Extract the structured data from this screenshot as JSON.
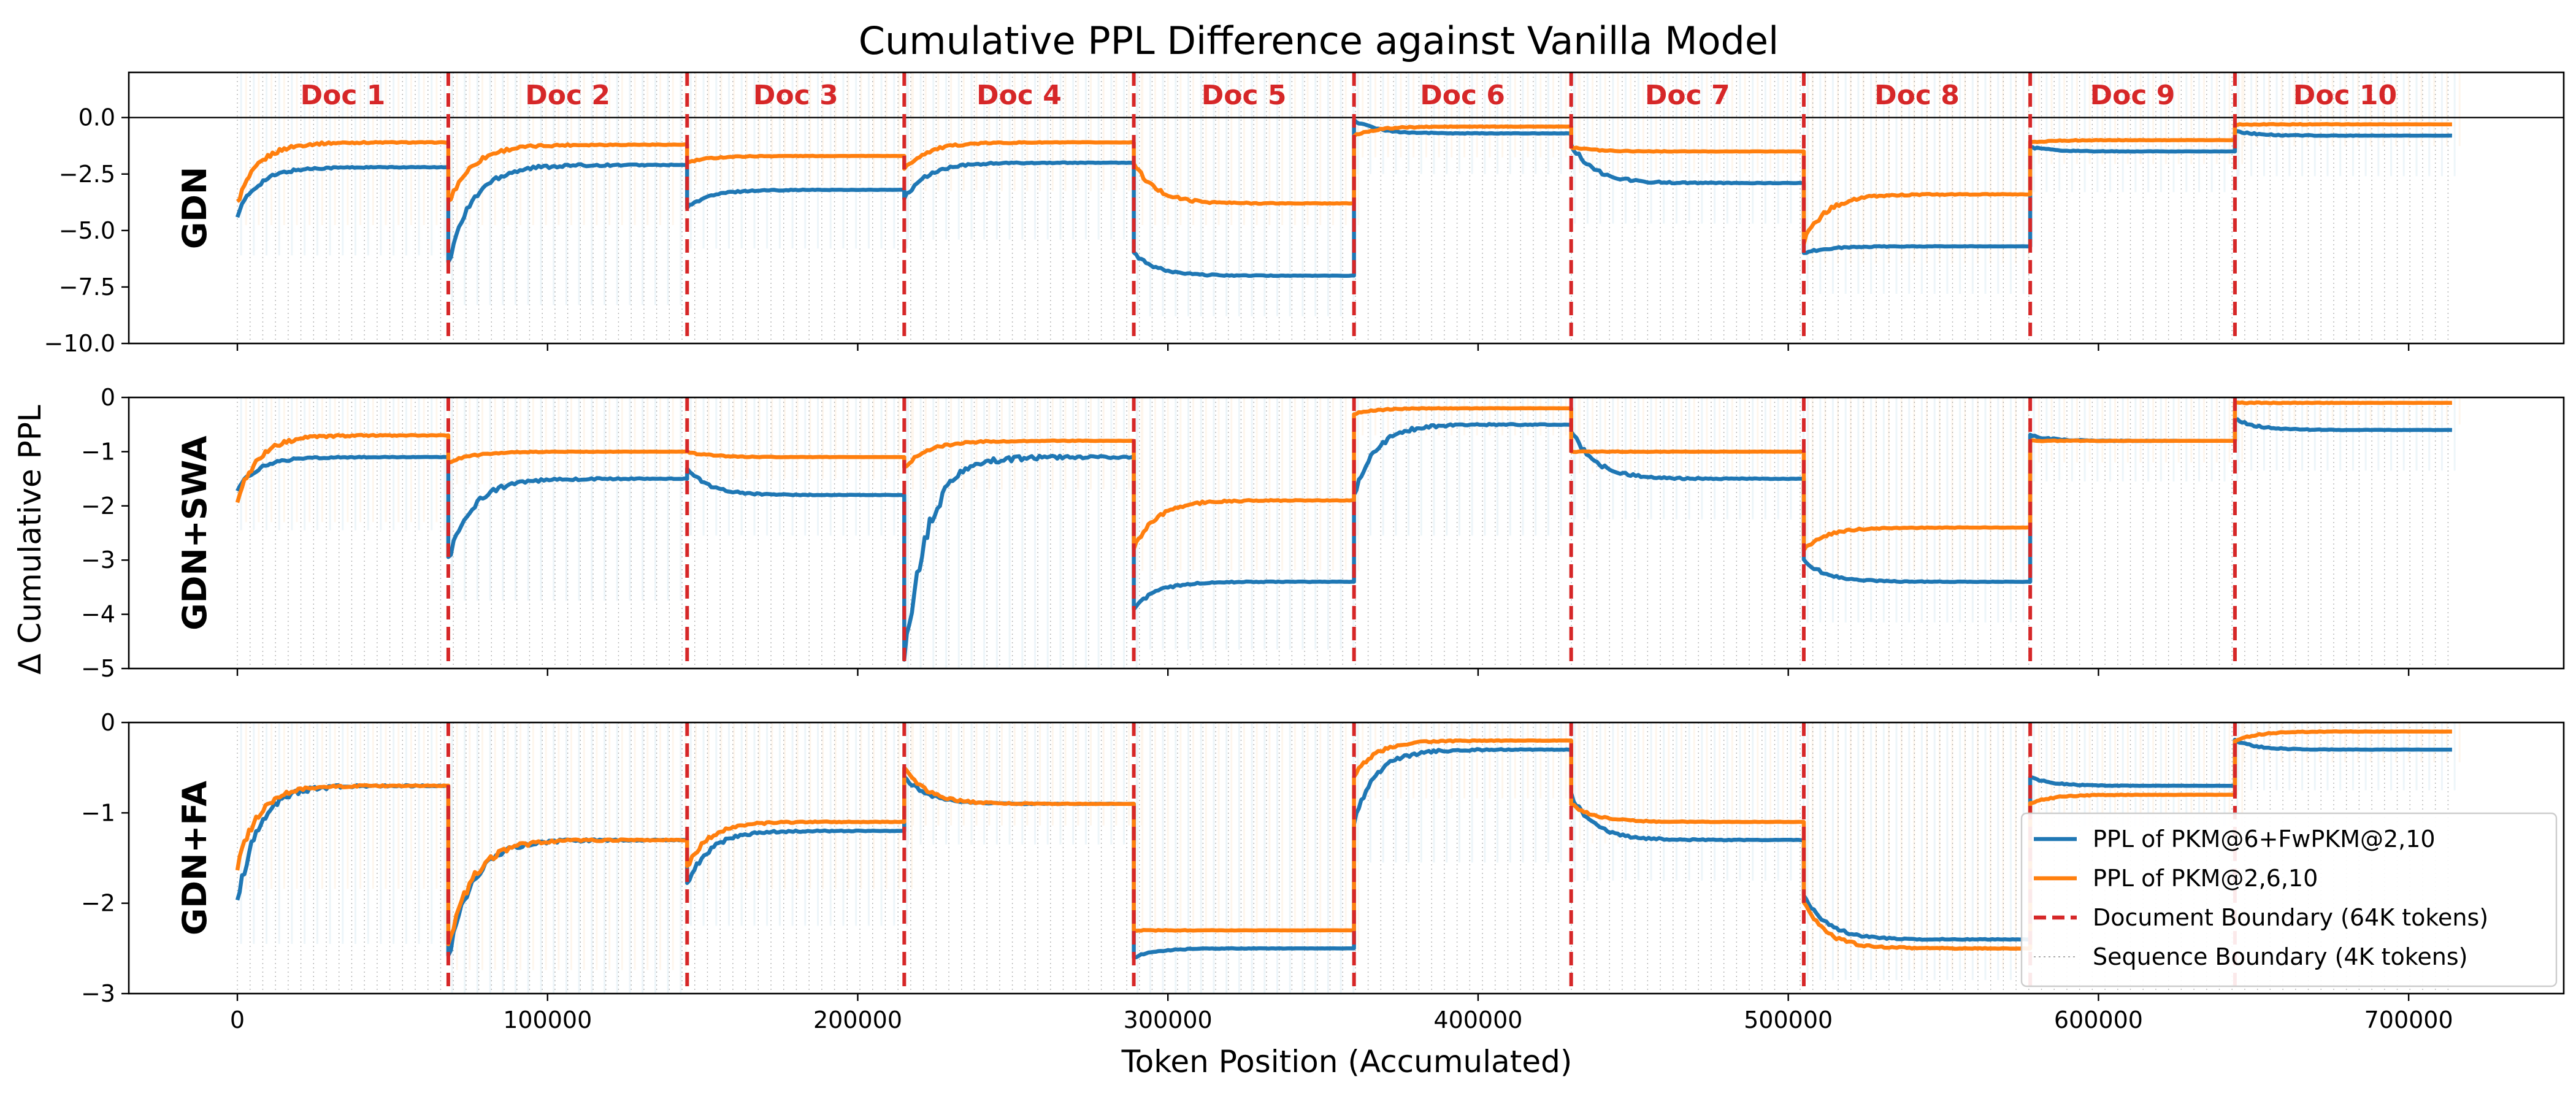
{
  "chart_data": {
    "type": "line",
    "title": "Cumulative PPL Difference against Vanilla Model",
    "xlabel": "Token Position (Accumulated)",
    "ylabel": "Δ Cumulative PPL",
    "xlim": [
      -35000,
      750000
    ],
    "xticks": [
      0,
      100000,
      200000,
      300000,
      400000,
      500000,
      600000,
      700000
    ],
    "xtick_labels": [
      "0",
      "100000",
      "200000",
      "300000",
      "400000",
      "500000",
      "600000",
      "700000"
    ],
    "doc_boundaries": [
      68000,
      145000,
      215000,
      289000,
      360000,
      430000,
      505000,
      578000,
      644000
    ],
    "doc_labels": [
      "Doc 1",
      "Doc 2",
      "Doc 3",
      "Doc 4",
      "Doc 5",
      "Doc 6",
      "Doc 7",
      "Doc 8",
      "Doc 9",
      "Doc 10"
    ],
    "doc_label_x": [
      34000,
      106500,
      180000,
      252000,
      324500,
      395000,
      467500,
      541500,
      611000,
      679500
    ],
    "sequence_boundary_step": 4096,
    "data_end": 714000,
    "series_names": [
      "PPL of PKM@6+FwPKM@2,10",
      "PPL of PKM@2,6,10"
    ],
    "series_colors": [
      "#1f77b4",
      "#ff7f0e"
    ],
    "panels": [
      {
        "row_label": "GDN",
        "ylim": [
          -10,
          2
        ],
        "yticks": [
          0,
          -2.5,
          -5,
          -7.5,
          -10
        ],
        "ytick_labels": [
          "0.0",
          "−2.5",
          "−5.0",
          "−7.5",
          "−10.0"
        ],
        "zero_line": true,
        "series": [
          {
            "name": "PPL of PKM@6+FwPKM@2,10",
            "start": [
              -4.3,
              -6.5,
              -4.0,
              -3.6,
              -6.0,
              -0.1,
              -1.2,
              -6.0,
              -1.3,
              -0.6
            ],
            "end": [
              -2.2,
              -2.1,
              -3.2,
              -2.0,
              -7.0,
              -0.7,
              -2.9,
              -5.7,
              -1.5,
              -0.8
            ]
          },
          {
            "name": "PPL of PKM@2,6,10",
            "start": [
              -3.8,
              -3.8,
              -2.0,
              -2.3,
              -2.0,
              -0.8,
              -1.3,
              -5.5,
              -1.1,
              -0.3
            ],
            "end": [
              -1.1,
              -1.2,
              -1.7,
              -1.1,
              -3.8,
              -0.4,
              -1.5,
              -3.4,
              -1.0,
              -0.3
            ]
          }
        ]
      },
      {
        "row_label": "GDN+SWA",
        "ylim": [
          -5,
          0
        ],
        "yticks": [
          0,
          -1,
          -2,
          -3,
          -4,
          -5
        ],
        "ytick_labels": [
          "0",
          "−1",
          "−2",
          "−3",
          "−4",
          "−5"
        ],
        "zero_line": false,
        "series": [
          {
            "name": "PPL of PKM@6+FwPKM@2,10",
            "start": [
              -1.7,
              -3.0,
              -1.3,
              -4.9,
              -3.9,
              -1.8,
              -0.6,
              -3.0,
              -0.7,
              -0.4
            ],
            "end": [
              -1.1,
              -1.5,
              -1.8,
              -1.1,
              -3.4,
              -0.5,
              -1.5,
              -3.4,
              -0.8,
              -0.6
            ]
          },
          {
            "name": "PPL of PKM@2,6,10",
            "start": [
              -1.9,
              -1.2,
              -1.0,
              -1.3,
              -2.8,
              -0.3,
              -1.0,
              -2.8,
              -0.8,
              -0.1
            ],
            "end": [
              -0.7,
              -1.0,
              -1.1,
              -0.8,
              -1.9,
              -0.2,
              -1.0,
              -2.4,
              -0.8,
              -0.1
            ]
          }
        ]
      },
      {
        "row_label": "GDN+FA",
        "ylim": [
          -3,
          0
        ],
        "yticks": [
          0,
          -1,
          -2,
          -3
        ],
        "ytick_labels": [
          "0",
          "−1",
          "−2",
          "−3"
        ],
        "zero_line": false,
        "series": [
          {
            "name": "PPL of PKM@6+FwPKM@2,10",
            "start": [
              -2.0,
              -2.6,
              -1.8,
              -0.6,
              -2.6,
              -1.1,
              -0.8,
              -1.9,
              -0.6,
              -0.2
            ],
            "end": [
              -0.7,
              -1.3,
              -1.2,
              -0.9,
              -2.5,
              -0.3,
              -1.3,
              -2.4,
              -0.7,
              -0.3
            ]
          },
          {
            "name": "PPL of PKM@2,6,10",
            "start": [
              -1.6,
              -2.5,
              -1.6,
              -0.5,
              -2.3,
              -0.6,
              -0.9,
              -2.0,
              -0.9,
              -0.2
            ],
            "end": [
              -0.7,
              -1.3,
              -1.1,
              -0.9,
              -2.3,
              -0.2,
              -1.1,
              -2.5,
              -0.8,
              -0.1
            ]
          }
        ]
      }
    ],
    "legend": {
      "position": "lower-right of bottom panel",
      "entries": [
        {
          "label": "PPL of PKM@6+FwPKM@2,10",
          "style": "solid",
          "color": "#1f77b4"
        },
        {
          "label": "PPL of PKM@2,6,10",
          "style": "solid",
          "color": "#ff7f0e"
        },
        {
          "label": "Document Boundary (64K tokens)",
          "style": "dashed",
          "color": "#d62728"
        },
        {
          "label": "Sequence Boundary (4K tokens)",
          "style": "dotted",
          "color": "#aaaaaa"
        }
      ]
    }
  }
}
